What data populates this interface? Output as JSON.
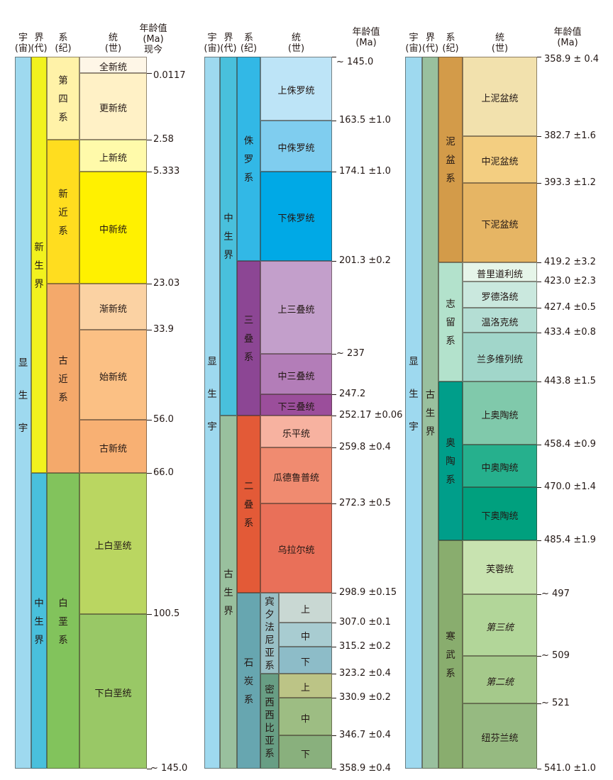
{
  "headers": {
    "eon": [
      "宇",
      "(宙)"
    ],
    "era": [
      "界",
      "(代)"
    ],
    "period": [
      "系",
      "(纪)"
    ],
    "epoch": [
      "统",
      "(世)"
    ],
    "age": [
      "年龄值",
      "(Ma)"
    ],
    "present": "现今"
  },
  "colors": {
    "eon": "#9ed9ef",
    "cenozoic": "#f2f21e",
    "mesozoic": "#49c0dc",
    "paleozoic": "#99c09e",
    "quaternary": "#fff2a8",
    "neogene": "#ffdd1f",
    "paleogene": "#f4a96b",
    "cretaceous": "#82c35c",
    "jurassic": "#32b8e6",
    "triassic": "#8c4694",
    "permian": "#e35a37",
    "carboniferous": "#67a6b0",
    "mississippian": "#689e84",
    "devonian": "#d39b49",
    "silurian": "#b3e2cc",
    "ordovician": "#009e8a",
    "cambrian": "#89ad6e"
  },
  "columns": [
    {
      "eons": [
        {
          "name": "显生宇",
          "top": 0,
          "bottom": 145,
          "color": "#9ed9ef"
        }
      ],
      "eras": [
        {
          "name": "新生界",
          "top": 0,
          "bottom": 66.0,
          "color": "#f2f21e"
        },
        {
          "name": "中生界",
          "top": 66.0,
          "bottom": 145,
          "color": "#49c0dc"
        }
      ],
      "periods": [
        {
          "name": "第四系",
          "top": 0,
          "bottom": 2.58,
          "color": "#fff2a8"
        },
        {
          "name": "新近系",
          "top": 2.58,
          "bottom": 23.03,
          "color": "#ffdd1f"
        },
        {
          "name": "古近系",
          "top": 23.03,
          "bottom": 66.0,
          "color": "#f4a96b"
        },
        {
          "name": "白垩系",
          "top": 66.0,
          "bottom": 145,
          "color": "#82c35c"
        }
      ],
      "epochs": [
        {
          "name": "全新统",
          "top": 0,
          "bottom": 0.0117,
          "color": "#fef6e7"
        },
        {
          "name": "更新统",
          "top": 0.0117,
          "bottom": 2.58,
          "color": "#fff1c6"
        },
        {
          "name": "上新统",
          "top": 2.58,
          "bottom": 5.333,
          "color": "#fffaaa"
        },
        {
          "name": "中新统",
          "top": 5.333,
          "bottom": 23.03,
          "color": "#fff100"
        },
        {
          "name": "渐新统",
          "top": 23.03,
          "bottom": 33.9,
          "color": "#fbd2a3"
        },
        {
          "name": "始新统",
          "top": 33.9,
          "bottom": 56.0,
          "color": "#fbc084"
        },
        {
          "name": "古新统",
          "top": 56.0,
          "bottom": 66.0,
          "color": "#f8b073"
        },
        {
          "name": "上白垩统",
          "top": 66.0,
          "bottom": 100.5,
          "color": "#bad661"
        },
        {
          "name": "下白垩统",
          "top": 100.5,
          "bottom": 145,
          "color": "#99c866"
        }
      ],
      "ages": [
        {
          "label": "0.0117",
          "value": 0.0117
        },
        {
          "label": "2.58",
          "value": 2.58
        },
        {
          "label": "5.333",
          "value": 5.333
        },
        {
          "label": "23.03",
          "value": 23.03
        },
        {
          "label": "33.9",
          "value": 33.9
        },
        {
          "label": "56.0",
          "value": 56.0
        },
        {
          "label": "66.0",
          "value": 66.0
        },
        {
          "label": "100.5",
          "value": 100.5
        },
        {
          "label": "~ 145.0",
          "value": 145
        }
      ]
    },
    {
      "eons": [
        {
          "name": "显生宇",
          "top": 145,
          "bottom": 358.9,
          "color": "#9ed9ef"
        }
      ],
      "eras": [
        {
          "name": "中生界",
          "top": 145,
          "bottom": 252.17,
          "color": "#49c0dc"
        },
        {
          "name": "古生界",
          "top": 252.17,
          "bottom": 358.9,
          "color": "#99c09e"
        }
      ],
      "periods": [
        {
          "name": "侏罗系",
          "top": 145,
          "bottom": 201.3,
          "color": "#32b8e6"
        },
        {
          "name": "三叠系",
          "top": 201.3,
          "bottom": 252.17,
          "color": "#8c4694"
        },
        {
          "name": "二叠系",
          "top": 252.17,
          "bottom": 298.9,
          "color": "#e35a37"
        },
        {
          "name": "石炭系",
          "top": 298.9,
          "bottom": 358.9,
          "color": "#67a6b0"
        }
      ],
      "subperiods": [
        {
          "name": "宾夕法尼亚系",
          "top": 298.9,
          "bottom": 323.2,
          "color": "#99c0c6"
        },
        {
          "name": "密西西比亚系",
          "top": 323.2,
          "bottom": 358.9,
          "color": "#689e84"
        }
      ],
      "epochs": [
        {
          "name": "上侏罗统",
          "top": 145,
          "bottom": 163.5,
          "color": "#bde4f7"
        },
        {
          "name": "中侏罗统",
          "top": 163.5,
          "bottom": 174.1,
          "color": "#7fcdef"
        },
        {
          "name": "下侏罗统",
          "top": 174.1,
          "bottom": 201.3,
          "color": "#00a9e6"
        },
        {
          "name": "上三叠统",
          "top": 201.3,
          "bottom": 237,
          "color": "#c39fcb"
        },
        {
          "name": "中三叠统",
          "top": 237,
          "bottom": 247.2,
          "color": "#b37db8"
        },
        {
          "name": "下三叠统",
          "top": 247.2,
          "bottom": 252.17,
          "color": "#9b4e9b"
        },
        {
          "name": "乐平统",
          "top": 252.17,
          "bottom": 259.8,
          "color": "#f7b2a0"
        },
        {
          "name": "瓜德鲁普统",
          "top": 259.8,
          "bottom": 272.3,
          "color": "#f08b70"
        },
        {
          "name": "乌拉尔统",
          "top": 272.3,
          "bottom": 298.9,
          "color": "#e97059"
        }
      ],
      "subepochs": [
        {
          "name": "上",
          "top": 298.9,
          "bottom": 307.0,
          "color": "#c9d8d3"
        },
        {
          "name": "中",
          "top": 307.0,
          "bottom": 315.2,
          "color": "#a8ccd1"
        },
        {
          "name": "下",
          "top": 315.2,
          "bottom": 323.2,
          "color": "#8dbcc8"
        },
        {
          "name": "上",
          "top": 323.2,
          "bottom": 330.9,
          "color": "#bcc486"
        },
        {
          "name": "中",
          "top": 330.9,
          "bottom": 346.7,
          "color": "#9dbd83"
        },
        {
          "name": "下",
          "top": 346.7,
          "bottom": 358.9,
          "color": "#89b07d"
        }
      ],
      "ages": [
        {
          "label": "~ 145.0",
          "value": 145
        },
        {
          "label": "163.5 ±1.0",
          "value": 163.5
        },
        {
          "label": "174.1 ±1.0",
          "value": 174.1
        },
        {
          "label": "201.3 ±0.2",
          "value": 201.3
        },
        {
          "label": "~ 237",
          "value": 237
        },
        {
          "label": "247.2",
          "value": 247.2
        },
        {
          "label": "252.17 ±0.06",
          "value": 252.17
        },
        {
          "label": "259.8 ±0.4",
          "value": 259.8
        },
        {
          "label": "272.3 ±0.5",
          "value": 272.3
        },
        {
          "label": "298.9 ±0.15",
          "value": 298.9
        },
        {
          "label": "307.0 ±0.1",
          "value": 307.0
        },
        {
          "label": "315.2 ±0.2",
          "value": 315.2
        },
        {
          "label": "323.2 ±0.4",
          "value": 323.2
        },
        {
          "label": "330.9 ±0.2",
          "value": 330.9
        },
        {
          "label": "346.7 ±0.4",
          "value": 346.7
        },
        {
          "label": "358.9 ±0.4",
          "value": 358.9
        }
      ]
    },
    {
      "eons": [
        {
          "name": "显生宇",
          "top": 358.9,
          "bottom": 541.0,
          "color": "#9ed9ef"
        }
      ],
      "eras": [
        {
          "name": "古生界",
          "top": 358.9,
          "bottom": 541.0,
          "color": "#99c09e"
        }
      ],
      "periods": [
        {
          "name": "泥盆系",
          "top": 358.9,
          "bottom": 419.2,
          "color": "#d39b49"
        },
        {
          "name": "志留系",
          "top": 419.2,
          "bottom": 443.8,
          "color": "#b3e2cc"
        },
        {
          "name": "奥陶系",
          "top": 443.8,
          "bottom": 485.4,
          "color": "#009e8a"
        },
        {
          "name": "寒武系",
          "top": 485.4,
          "bottom": 541.0,
          "color": "#89ad6e"
        }
      ],
      "epochs": [
        {
          "name": "上泥盆统",
          "top": 358.9,
          "bottom": 382.7,
          "color": "#f2e1ad"
        },
        {
          "name": "中泥盆统",
          "top": 382.7,
          "bottom": 393.3,
          "color": "#f3ce81"
        },
        {
          "name": "下泥盆统",
          "top": 393.3,
          "bottom": 419.2,
          "color": "#e6b564"
        },
        {
          "name": "普里道利统",
          "top": 419.2,
          "bottom": 423.0,
          "color": "#e6f5e9"
        },
        {
          "name": "罗德洛统",
          "top": 423.0,
          "bottom": 427.4,
          "color": "#cae8de"
        },
        {
          "name": "温洛克统",
          "top": 427.4,
          "bottom": 433.4,
          "color": "#b4ded4"
        },
        {
          "name": "兰多维列统",
          "top": 433.4,
          "bottom": 443.8,
          "color": "#a1d6ca"
        },
        {
          "name": "上奥陶统",
          "top": 443.8,
          "bottom": 458.4,
          "color": "#80c9ab"
        },
        {
          "name": "中奥陶统",
          "top": 458.4,
          "bottom": 470.0,
          "color": "#26b08d"
        },
        {
          "name": "下奥陶统",
          "top": 470.0,
          "bottom": 485.4,
          "color": "#00a07e"
        },
        {
          "name": "芙蓉统",
          "top": 485.4,
          "bottom": 497,
          "color": "#c8e3b0"
        },
        {
          "name": "第三统",
          "top": 497,
          "bottom": 509,
          "color": "#b2d699"
        },
        {
          "name": "第二统",
          "top": 509,
          "bottom": 521,
          "color": "#a5c98b"
        },
        {
          "name": "纽芬兰统",
          "top": 521,
          "bottom": 541.0,
          "color": "#96ba81"
        }
      ],
      "ages": [
        {
          "label": "358.9 ± 0.4",
          "value": 358.9
        },
        {
          "label": "382.7 ±1.6",
          "value": 382.7
        },
        {
          "label": "393.3 ±1.2",
          "value": 393.3
        },
        {
          "label": "419.2 ±3.2",
          "value": 419.2
        },
        {
          "label": "423.0 ±2.3",
          "value": 423.0
        },
        {
          "label": "427.4 ±0.5",
          "value": 427.4
        },
        {
          "label": "433.4 ±0.8",
          "value": 433.4
        },
        {
          "label": "443.8 ±1.5",
          "value": 443.8
        },
        {
          "label": "458.4 ±0.9",
          "value": 458.4
        },
        {
          "label": "470.0 ±1.4",
          "value": 470.0
        },
        {
          "label": "485.4 ±1.9",
          "value": 485.4
        },
        {
          "label": "~ 497",
          "value": 497
        },
        {
          "label": "~ 509",
          "value": 509
        },
        {
          "label": "~ 521",
          "value": 521
        },
        {
          "label": "541.0 ±1.0",
          "value": 541.0
        }
      ]
    }
  ]
}
